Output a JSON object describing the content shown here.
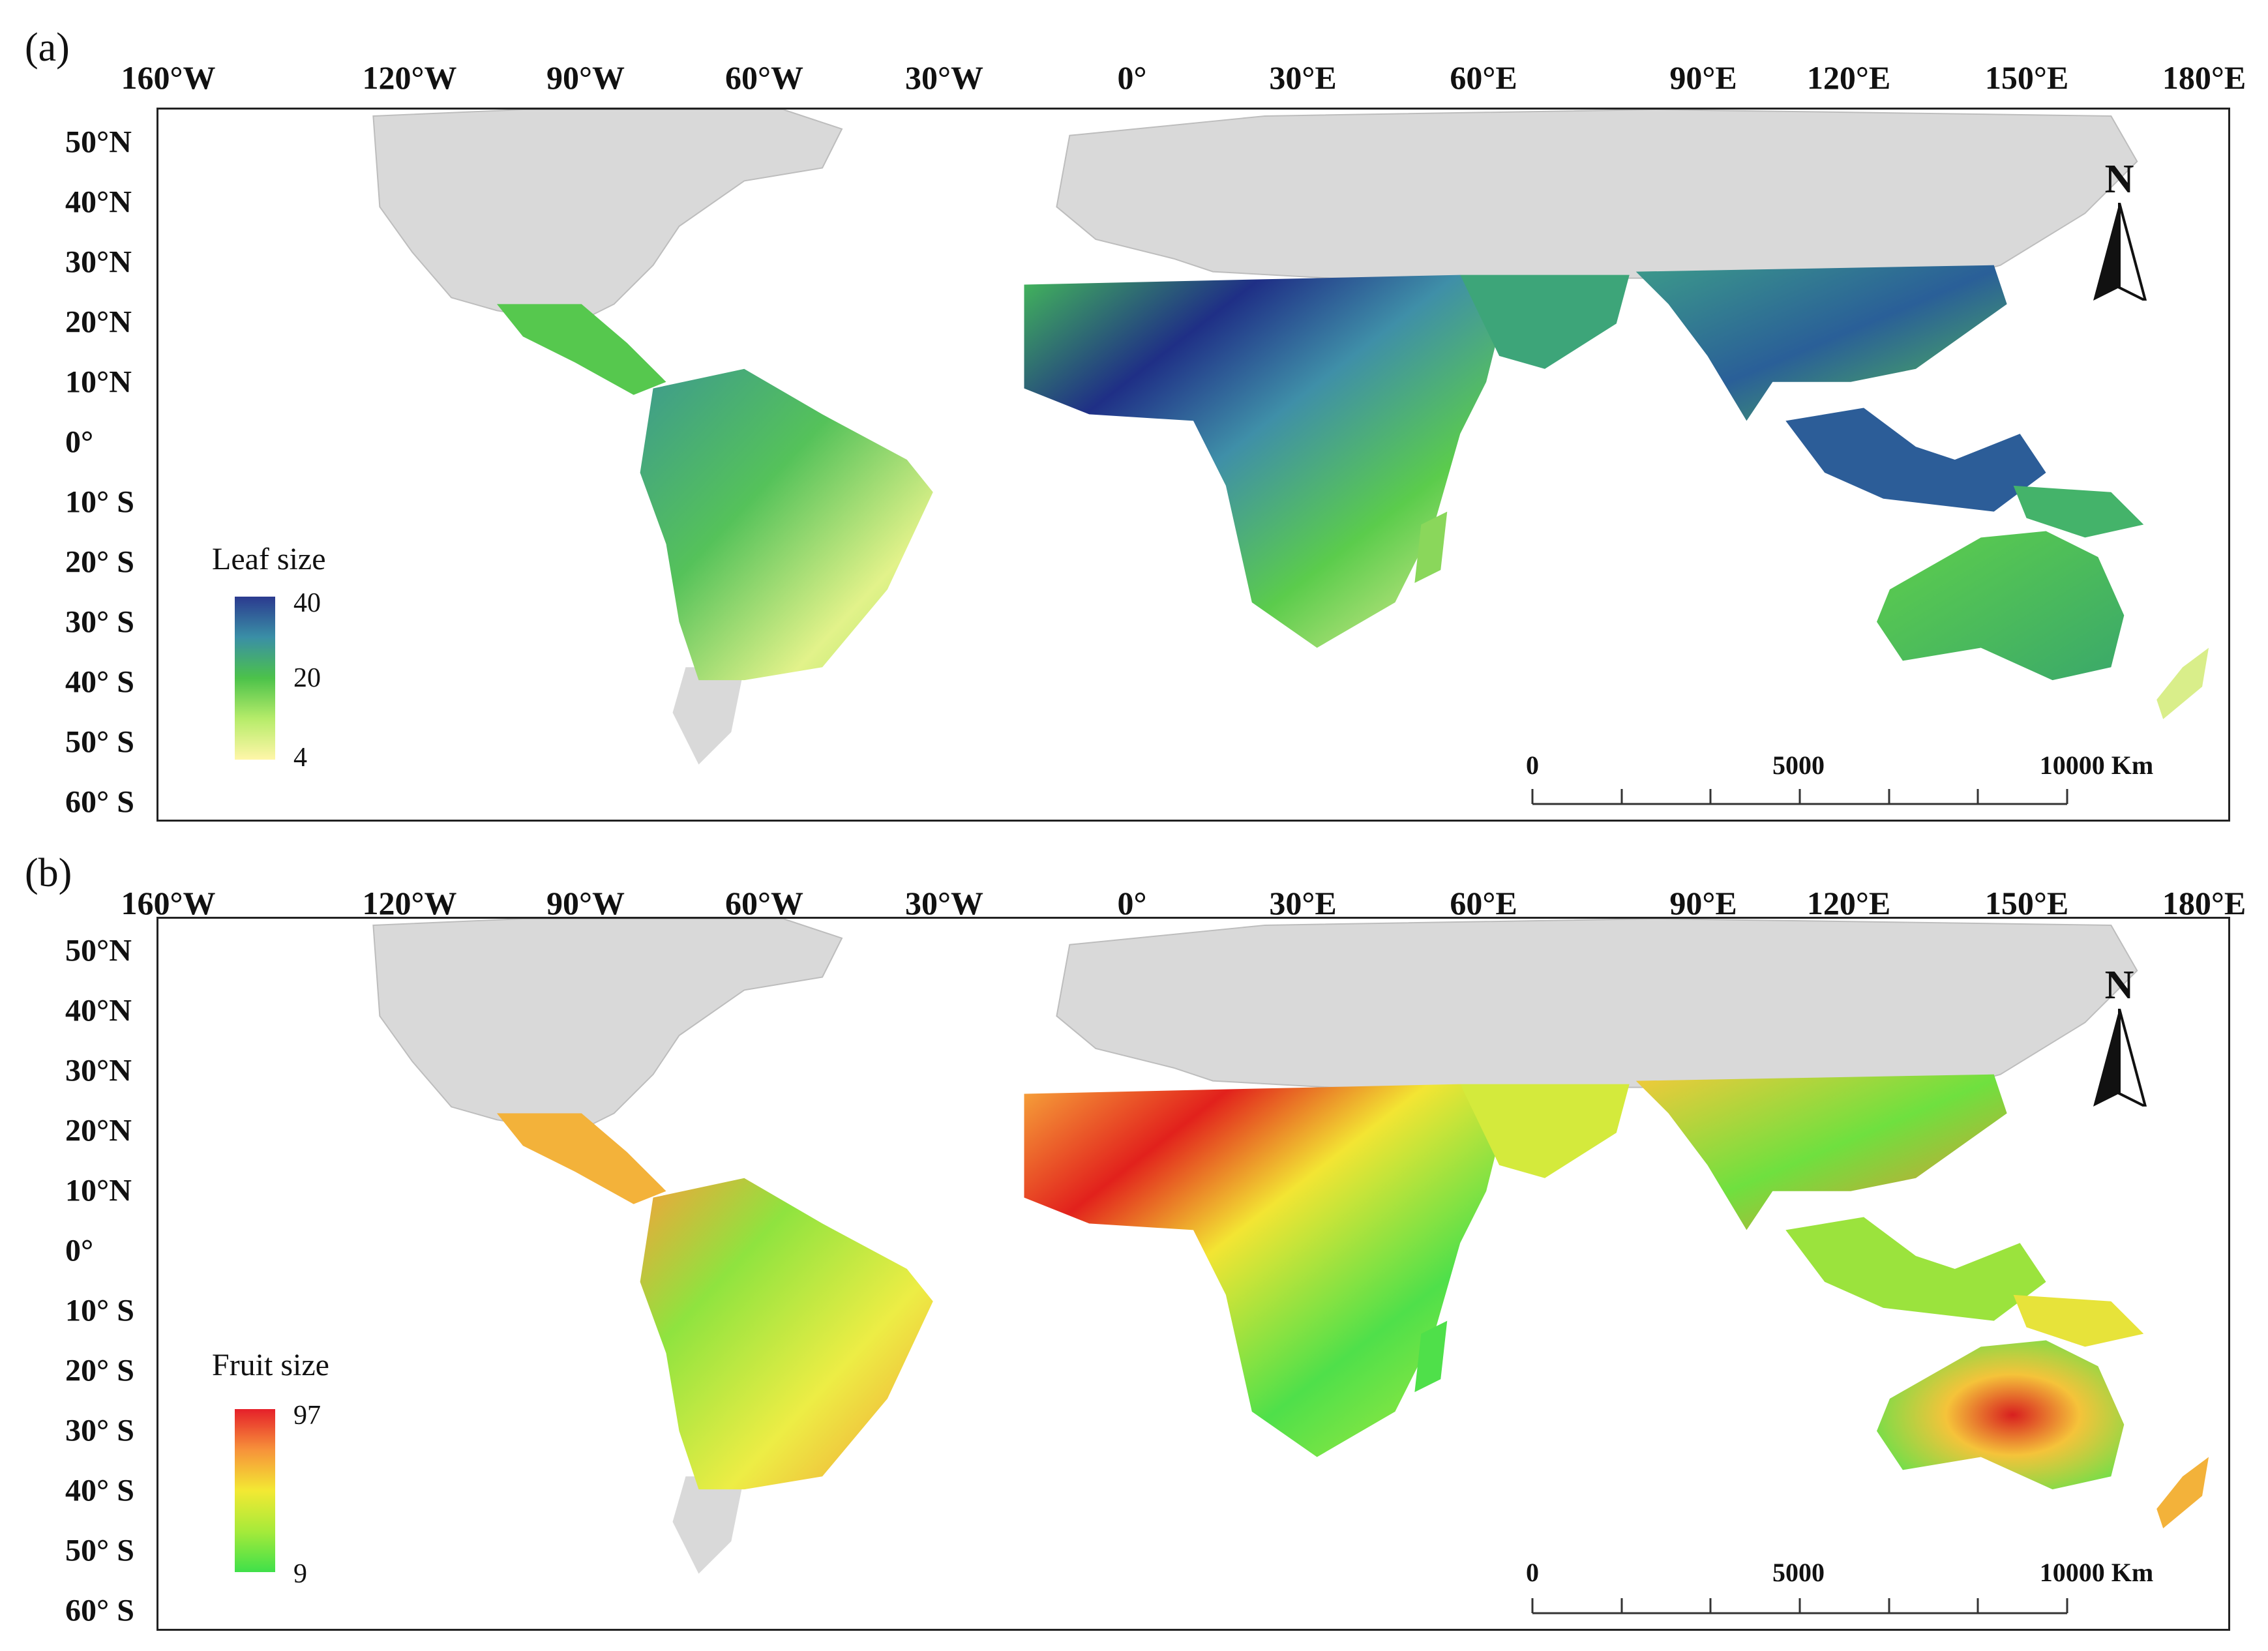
{
  "lon_labels": [
    "160°W",
    "120°W",
    "90°W",
    "60°W",
    "30°W",
    "0°",
    "30°E",
    "60°E",
    "90°E",
    "120°E",
    "150°E",
    "180°E"
  ],
  "lat_labels": [
    "50°N",
    "40°N",
    "30°N",
    "20°N",
    "10°N",
    "0°",
    "10° S",
    "20° S",
    "30° S",
    "40° S",
    "50° S",
    "60° S"
  ],
  "north_label": "N",
  "scale_bar": {
    "labels": [
      "0",
      "5000",
      "10000 Km"
    ]
  },
  "panels": [
    {
      "letter": "(a)",
      "legend_title": "Leaf size",
      "legend_ticks": [
        "40",
        "20",
        "4"
      ],
      "legend_colors": [
        "#2b3a8f",
        "#3a8fa6",
        "#4cc24a",
        "#b6ec6a",
        "#fff6a8"
      ]
    },
    {
      "letter": "(b)",
      "legend_title": "Fruit size",
      "legend_ticks": [
        "97",
        "9"
      ],
      "legend_colors": [
        "#e5202a",
        "#f7923a",
        "#f3e933",
        "#a6ea3a",
        "#3fe04a"
      ]
    }
  ],
  "colors": {
    "land_gray": "#d9d9d9",
    "border": "#222222"
  }
}
